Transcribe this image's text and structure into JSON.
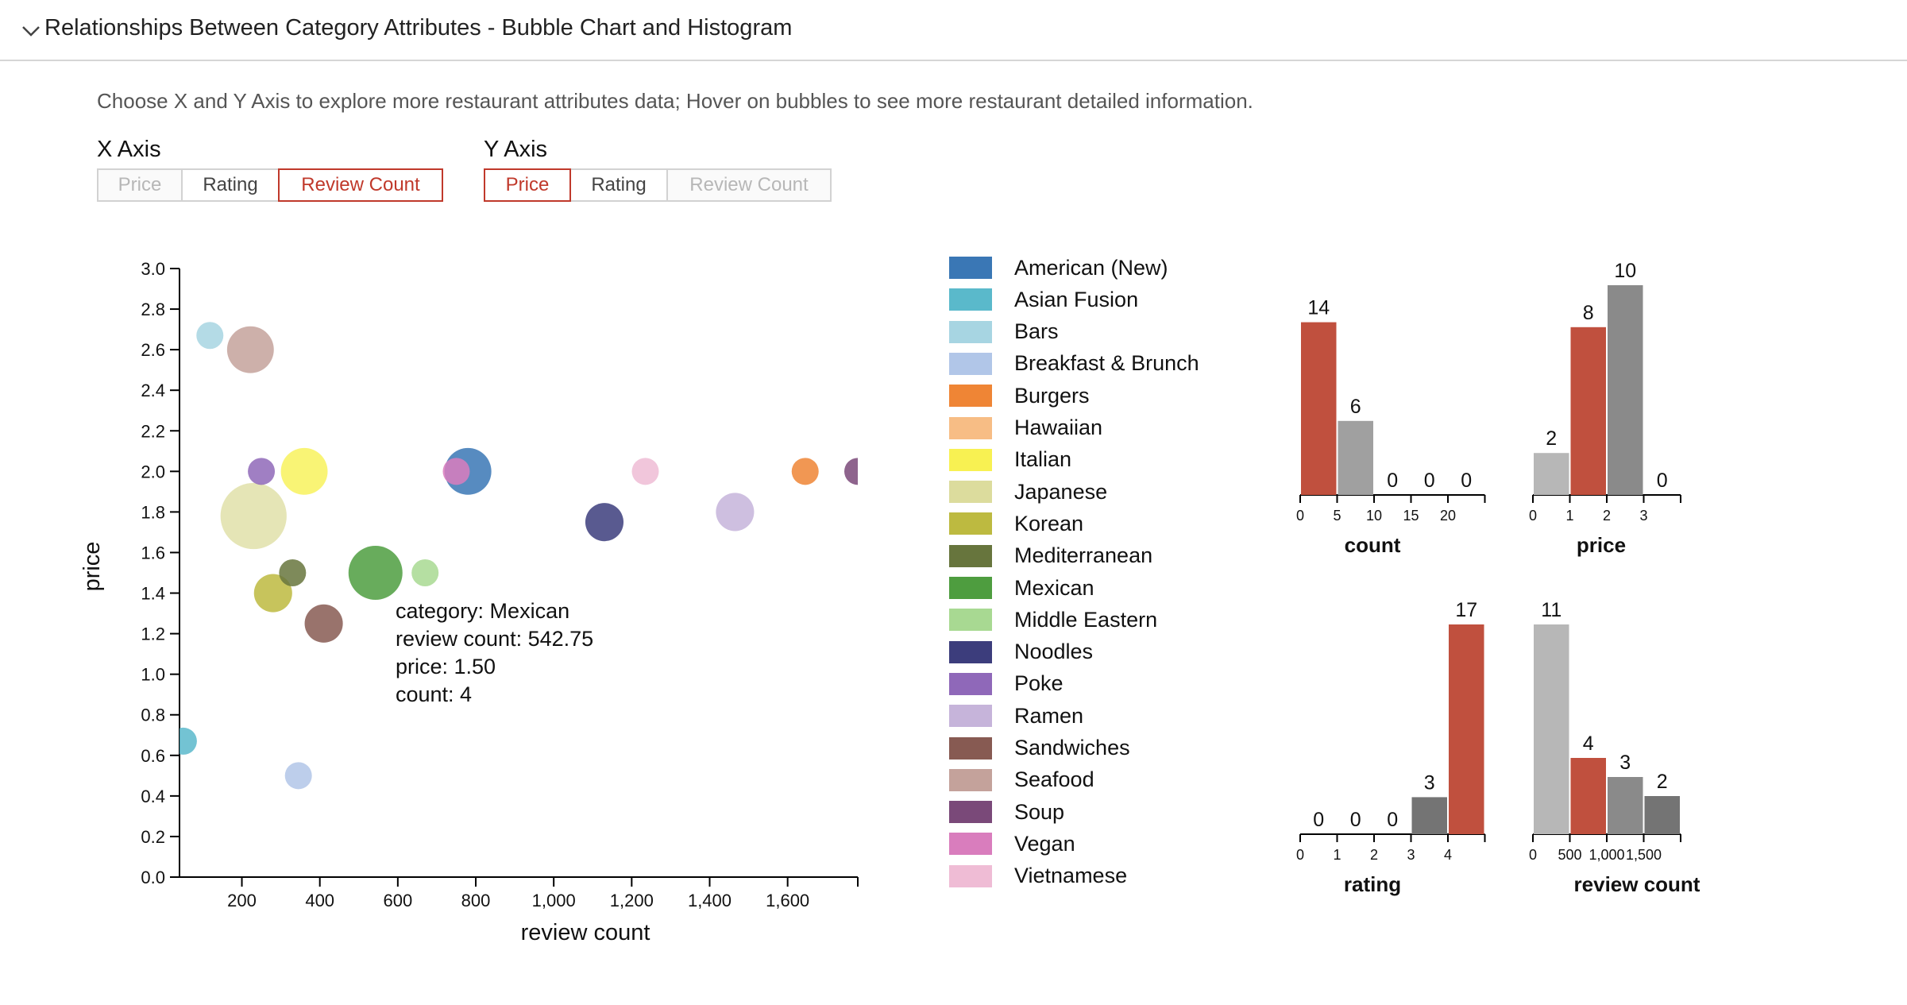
{
  "header": {
    "title": "Relationships Between Category Attributes - Bubble Chart and Histogram"
  },
  "instructions": "Choose X and Y Axis to explore more restaurant attributes data; Hover on bubbles to see more restaurant detailed information.",
  "x_axis_control": {
    "label": "X Axis",
    "options": [
      {
        "label": "Price",
        "state": "disabled"
      },
      {
        "label": "Rating",
        "state": "normal"
      },
      {
        "label": "Review Count",
        "state": "active"
      }
    ]
  },
  "y_axis_control": {
    "label": "Y Axis",
    "options": [
      {
        "label": "Price",
        "state": "active"
      },
      {
        "label": "Rating",
        "state": "normal"
      },
      {
        "label": "Review Count",
        "state": "disabled"
      }
    ]
  },
  "tooltip": {
    "lines": [
      "category: Mexican",
      "review count: 542.75",
      "price: 1.50",
      "count: 4"
    ]
  },
  "chart_data": [
    {
      "type": "scatter",
      "subtype": "bubble",
      "xlabel": "review count",
      "ylabel": "price",
      "xlim": [
        40,
        1780
      ],
      "ylim": [
        0,
        3.0
      ],
      "xticks": [
        200,
        400,
        600,
        800,
        1000,
        1200,
        1400,
        1600
      ],
      "xtick_labels": [
        "200",
        "400",
        "600",
        "800",
        "1,000",
        "1,200",
        "1,400",
        "1,600"
      ],
      "yticks": [
        0,
        0.2,
        0.4,
        0.6,
        0.8,
        1.0,
        1.2,
        1.4,
        1.6,
        1.8,
        2.0,
        2.2,
        2.4,
        2.6,
        2.8,
        3.0
      ],
      "ytick_labels": [
        "0.0",
        "0.2",
        "0.4",
        "0.6",
        "0.8",
        "1.0",
        "1.2",
        "1.4",
        "1.6",
        "1.8",
        "2.0",
        "2.2",
        "2.4",
        "2.6",
        "2.8",
        "3.0"
      ],
      "legend": "right",
      "categories": [
        {
          "name": "American (New)",
          "color": "#3a77b5",
          "x": 780,
          "y": 2.0,
          "count": 3,
          "opacity": 0.85
        },
        {
          "name": "Asian Fusion",
          "color": "#5ab9cb",
          "x": 50,
          "y": 0.67,
          "count": 1,
          "opacity": 0.85
        },
        {
          "name": "Bars",
          "color": "#a7d5e2",
          "x": 118,
          "y": 2.67,
          "count": 1,
          "opacity": 0.85
        },
        {
          "name": "Breakfast & Brunch",
          "color": "#b1c6e8",
          "x": 345,
          "y": 0.5,
          "count": 1,
          "opacity": 0.85
        },
        {
          "name": "Burgers",
          "color": "#ef8535",
          "x": 1645,
          "y": 2.0,
          "count": 1,
          "opacity": 0.85
        },
        {
          "name": "Hawaiian",
          "color": "#f7bd85",
          "x": 0,
          "y": 0,
          "count": 0,
          "opacity": 0.85
        },
        {
          "name": "Italian",
          "color": "#f8f152",
          "x": 360,
          "y": 2.0,
          "count": 3,
          "opacity": 0.8
        },
        {
          "name": "Japanese",
          "color": "#dcdc9d",
          "x": 230,
          "y": 1.78,
          "count": 6,
          "opacity": 0.75
        },
        {
          "name": "Korean",
          "color": "#bdba40",
          "x": 280,
          "y": 1.4,
          "count": 2,
          "opacity": 0.85
        },
        {
          "name": "Mediterranean",
          "color": "#67753d",
          "x": 330,
          "y": 1.5,
          "count": 1,
          "opacity": 0.85
        },
        {
          "name": "Mexican",
          "color": "#4e9d3f",
          "x": 542.75,
          "y": 1.5,
          "count": 4,
          "opacity": 0.85
        },
        {
          "name": "Middle Eastern",
          "color": "#a8d992",
          "x": 670,
          "y": 1.5,
          "count": 1,
          "opacity": 0.85
        },
        {
          "name": "Noodles",
          "color": "#3c3d7c",
          "x": 1130,
          "y": 1.75,
          "count": 2,
          "opacity": 0.85
        },
        {
          "name": "Poke",
          "color": "#8f68b9",
          "x": 250,
          "y": 2.0,
          "count": 1,
          "opacity": 0.85
        },
        {
          "name": "Ramen",
          "color": "#c6b4da",
          "x": 1465,
          "y": 1.8,
          "count": 2,
          "opacity": 0.85
        },
        {
          "name": "Sandwiches",
          "color": "#875a52",
          "x": 410,
          "y": 1.25,
          "count": 2,
          "opacity": 0.85
        },
        {
          "name": "Seafood",
          "color": "#c4a29b",
          "x": 222,
          "y": 2.6,
          "count": 3,
          "opacity": 0.85
        },
        {
          "name": "Soup",
          "color": "#7a4979",
          "x": 1780,
          "y": 2.0,
          "count": 1,
          "opacity": 0.85
        },
        {
          "name": "Vegan",
          "color": "#d97dbd",
          "x": 750,
          "y": 2.0,
          "count": 1,
          "opacity": 0.85
        },
        {
          "name": "Vietnamese",
          "color": "#efbcd5",
          "x": 1235,
          "y": 2.0,
          "count": 1,
          "opacity": 0.85
        }
      ]
    },
    {
      "type": "bar",
      "subtype": "histogram",
      "xlabel": "count",
      "xlim": [
        0,
        25
      ],
      "bins": [
        [
          0,
          5
        ],
        [
          5,
          10
        ],
        [
          10,
          15
        ],
        [
          15,
          20
        ],
        [
          20,
          25
        ]
      ],
      "values": [
        14,
        6,
        0,
        0,
        0
      ],
      "highlight_bin": 0,
      "ymax": 17,
      "xticks": [
        0,
        5,
        10,
        15,
        20
      ],
      "xtick_labels": [
        "0",
        "5",
        "10",
        "15",
        "20"
      ]
    },
    {
      "type": "bar",
      "subtype": "histogram",
      "xlabel": "price",
      "xlim": [
        0,
        4
      ],
      "bins": [
        [
          0,
          1
        ],
        [
          1,
          2
        ],
        [
          2,
          3
        ],
        [
          3,
          4
        ]
      ],
      "values": [
        2,
        8,
        10,
        0
      ],
      "highlight_bin": 1,
      "ymax": 10,
      "xticks": [
        0,
        1,
        2,
        3
      ],
      "xtick_labels": [
        "0",
        "1",
        "2",
        "3"
      ]
    },
    {
      "type": "bar",
      "subtype": "histogram",
      "xlabel": "rating",
      "xlim": [
        0,
        5
      ],
      "bins": [
        [
          0,
          1
        ],
        [
          1,
          2
        ],
        [
          2,
          3
        ],
        [
          3,
          4
        ],
        [
          4,
          5
        ]
      ],
      "values": [
        0,
        0,
        0,
        3,
        17
      ],
      "highlight_bin": 4,
      "ymax": 17,
      "xticks": [
        0,
        1,
        2,
        3,
        4
      ],
      "xtick_labels": [
        "0",
        "1",
        "2",
        "3",
        "4"
      ]
    },
    {
      "type": "bar",
      "subtype": "histogram",
      "xlabel": "review count",
      "xlim": [
        0,
        2000
      ],
      "bins": [
        [
          0,
          500
        ],
        [
          500,
          1000
        ],
        [
          1000,
          1500
        ],
        [
          1500,
          2000
        ]
      ],
      "values": [
        11,
        4,
        3,
        2
      ],
      "highlight_bin": 1,
      "ymax": 11,
      "xticks": [
        0,
        500,
        1000,
        1500
      ],
      "xtick_labels": [
        "0",
        "500",
        "1,000",
        "1,500"
      ]
    }
  ],
  "colors": {
    "highlight": "#c0503e",
    "bar_greys": [
      "#b7b7b7",
      "#a0a0a0",
      "#8a8a8a",
      "#747474",
      "#6a6a6a"
    ],
    "active_button": "#c0392b"
  }
}
